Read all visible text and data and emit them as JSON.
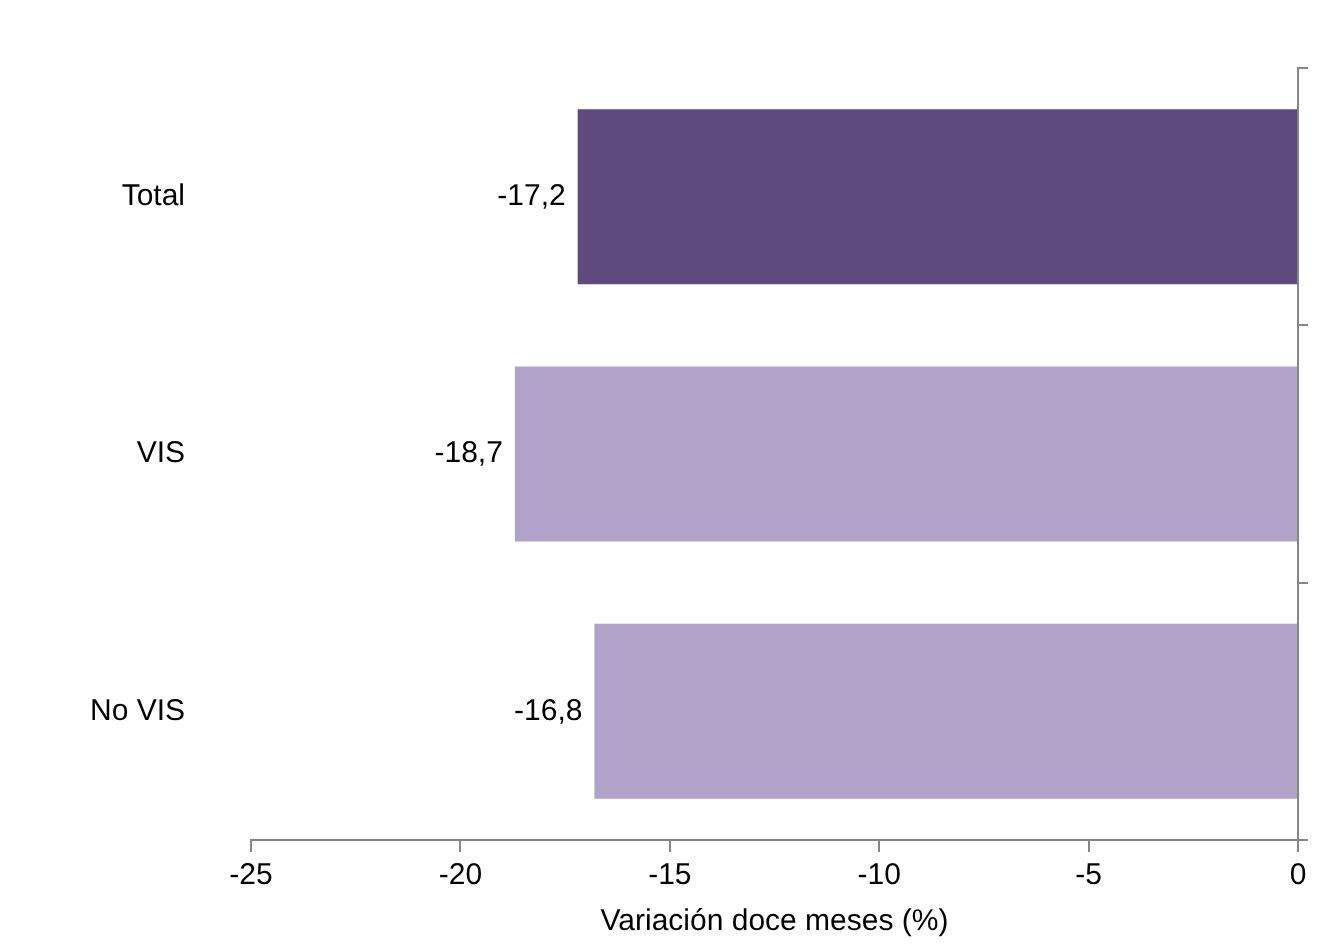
{
  "chart_data": {
    "type": "bar",
    "orientation": "horizontal",
    "xlabel": "Variación doce meses (%)",
    "categories": [
      "Total",
      "VIS",
      "No VIS"
    ],
    "values": [
      -17.2,
      -18.7,
      -16.8
    ],
    "colors": [
      "#5f4a80",
      "#b0a2c9",
      "#b0a2c9"
    ],
    "value_labels": [
      "-17,2",
      "-18,7",
      "-16,8"
    ],
    "xlim": [
      -25,
      0
    ],
    "xticks": [
      -25,
      -20,
      -15,
      -10,
      -5,
      0
    ],
    "grid": false,
    "legend": false
  }
}
